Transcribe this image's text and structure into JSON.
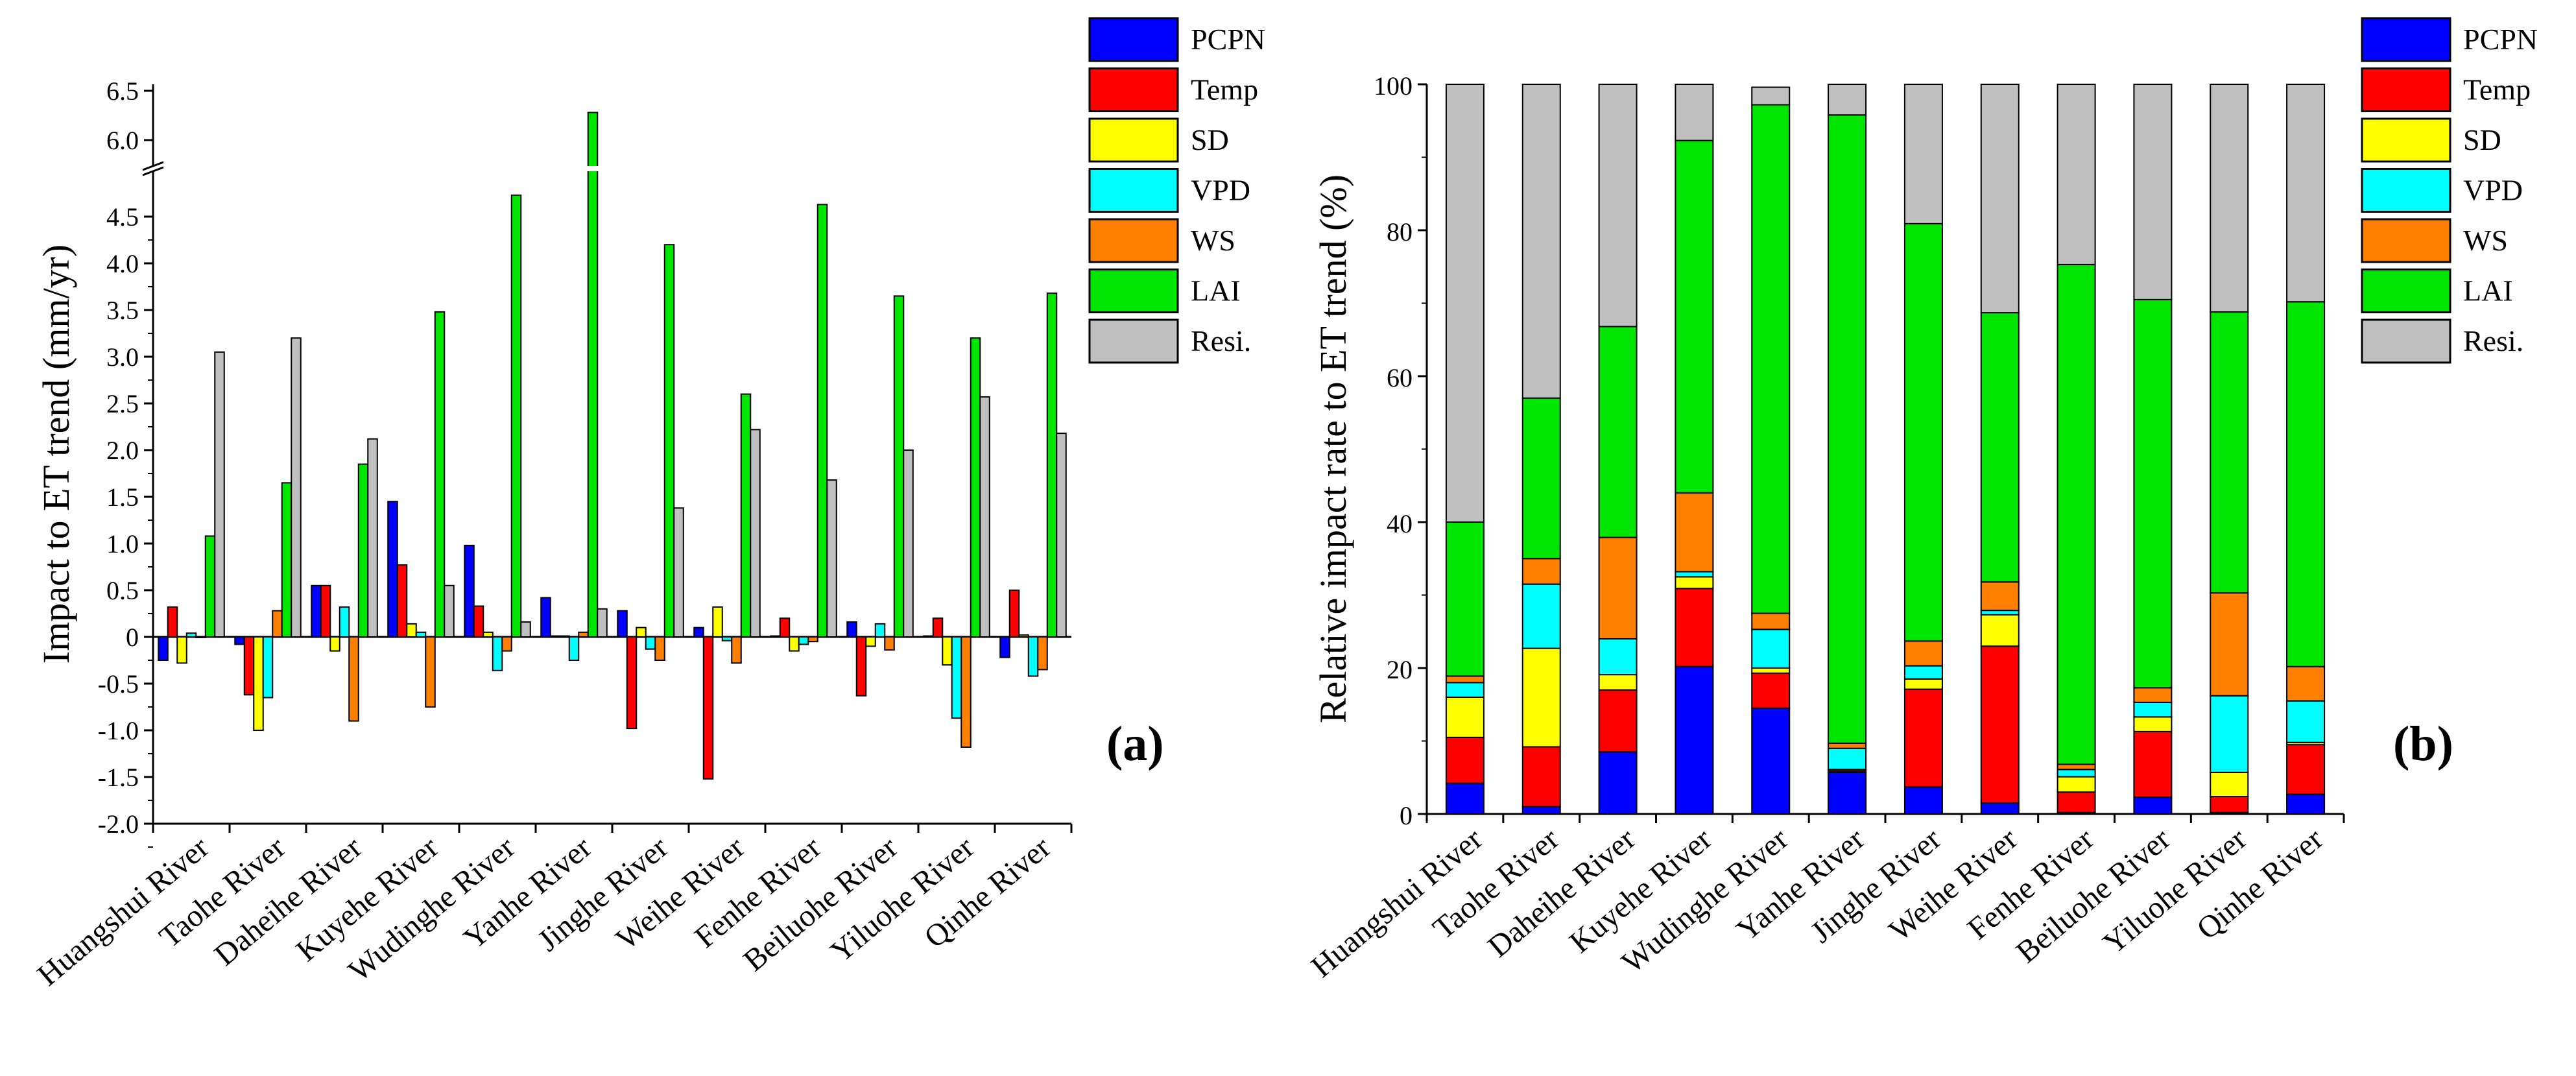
{
  "colors": {
    "PCPN": "#0000ff",
    "Temp": "#ff0000",
    "SD": "#ffff00",
    "VPD": "#00ffff",
    "WS": "#ff8000",
    "LAI": "#00e600",
    "Resi.": "#c0c0c0"
  },
  "chart_data": [
    {
      "type": "bar",
      "panel": "(a)",
      "ylabel": "Impact to ET trend (mm/yr)",
      "ylim": [
        -2.0,
        6.5
      ],
      "axis_break": [
        4.75,
        5.75
      ],
      "yticks_lower": [
        "-2.0",
        "-1.5",
        "-1.0",
        "-0.5",
        "0",
        "0.5",
        "1.0",
        "1.5",
        "2.0",
        "2.5",
        "3.0",
        "3.5",
        "4.0",
        "4.5"
      ],
      "yticks_upper": [
        "6.0",
        "6.5"
      ],
      "categories": [
        "Huangshui River",
        "Taohe River",
        "Daheihe River",
        "Kuyehe River",
        "Wudinghe River",
        "Yanhe River",
        "Jinghe River",
        "Weihe River",
        "Fenhe River",
        "Beiluohe River",
        "Yiluohe River",
        "Qinhe River"
      ],
      "series": [
        {
          "name": "PCPN",
          "values": [
            -0.25,
            -0.08,
            0.55,
            1.45,
            0.98,
            0.42,
            0.28,
            0.1,
            0.01,
            0.16,
            0.01,
            -0.22
          ]
        },
        {
          "name": "Temp",
          "values": [
            0.32,
            -0.62,
            0.55,
            0.77,
            0.33,
            0.01,
            -0.98,
            -1.52,
            0.2,
            -0.63,
            0.2,
            0.5
          ]
        },
        {
          "name": "SD",
          "values": [
            -0.28,
            -1.0,
            -0.15,
            0.14,
            0.05,
            0.01,
            0.1,
            0.32,
            -0.15,
            -0.1,
            -0.3,
            0.02
          ]
        },
        {
          "name": "VPD",
          "values": [
            0.04,
            -0.65,
            0.32,
            0.05,
            -0.36,
            -0.25,
            -0.13,
            -0.04,
            -0.08,
            0.14,
            -0.87,
            -0.42
          ]
        },
        {
          "name": "WS",
          "values": [
            0.0,
            0.28,
            -0.9,
            -0.75,
            -0.15,
            0.05,
            -0.25,
            -0.28,
            -0.05,
            -0.14,
            -1.18,
            -0.35
          ]
        },
        {
          "name": "LAI",
          "values": [
            1.08,
            1.65,
            1.85,
            3.48,
            4.73,
            6.28,
            4.2,
            2.6,
            4.63,
            3.65,
            3.2,
            3.68
          ]
        },
        {
          "name": "Resi.",
          "values": [
            3.05,
            3.2,
            2.12,
            0.55,
            0.16,
            0.3,
            1.38,
            2.22,
            1.68,
            2.0,
            2.57,
            2.18
          ]
        }
      ]
    },
    {
      "type": "bar",
      "stacked": true,
      "panel": "(b)",
      "ylabel": "Relative impact rate to ET trend (%)",
      "ylim": [
        0,
        100
      ],
      "yticks": [
        "0",
        "20",
        "40",
        "60",
        "80",
        "100"
      ],
      "categories": [
        "Huangshui River",
        "Taohe River",
        "Daheihe River",
        "Kuyehe River",
        "Wudinghe River",
        "Yanhe River",
        "Jinghe River",
        "Weihe River",
        "Fenhe River",
        "Beiluohe River",
        "Yiluohe River",
        "Qinhe River"
      ],
      "series": [
        {
          "name": "PCPN",
          "values": [
            4.2,
            1.0,
            8.5,
            20.2,
            14.5,
            5.7,
            3.7,
            1.5,
            0.2,
            2.3,
            0.2,
            2.7
          ]
        },
        {
          "name": "Temp",
          "values": [
            6.3,
            8.2,
            8.5,
            10.7,
            4.8,
            0.2,
            13.4,
            21.5,
            2.8,
            9.0,
            2.2,
            6.8
          ]
        },
        {
          "name": "SD",
          "values": [
            5.5,
            13.5,
            2.1,
            1.6,
            0.7,
            0.2,
            1.4,
            4.3,
            2.1,
            2.0,
            3.3,
            0.3
          ]
        },
        {
          "name": "VPD",
          "values": [
            2.0,
            8.8,
            4.9,
            0.7,
            5.3,
            2.9,
            1.8,
            0.6,
            1.0,
            2.0,
            10.5,
            5.7
          ]
        },
        {
          "name": "WS",
          "values": [
            0.9,
            3.5,
            13.9,
            10.8,
            2.2,
            0.7,
            3.4,
            3.9,
            0.7,
            2.0,
            14.1,
            4.7
          ]
        },
        {
          "name": "LAI",
          "values": [
            21.1,
            22.0,
            28.9,
            48.3,
            69.7,
            86.1,
            57.2,
            36.9,
            68.5,
            53.2,
            38.5,
            50.0
          ]
        },
        {
          "name": "Resi.",
          "values": [
            60.0,
            43.0,
            33.2,
            7.7,
            2.4,
            4.2,
            19.1,
            31.3,
            24.7,
            29.5,
            31.2,
            29.8
          ]
        }
      ]
    }
  ],
  "legend": [
    "PCPN",
    "Temp",
    "SD",
    "VPD",
    "WS",
    "LAI",
    "Resi."
  ]
}
